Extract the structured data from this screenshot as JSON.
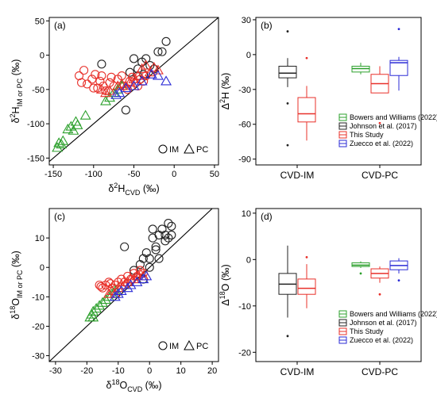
{
  "colors": {
    "bowers": "#2ca02c",
    "johnson": "#222222",
    "this_study": "#e8302a",
    "zuecco": "#2b2bd6"
  },
  "chart_data": [
    {
      "id": "a",
      "type": "scatter",
      "panel_label": "(a)",
      "xlim": [
        -155,
        55
      ],
      "ylim": [
        -160,
        55
      ],
      "xticks": [
        -150,
        -100,
        -50,
        0,
        50
      ],
      "yticks": [
        -150,
        -100,
        -50,
        0,
        50
      ],
      "xlabel": {
        "main": "δ",
        "sup": "2",
        "main2": "H",
        "sub": "CVD",
        "tail": " (‰)"
      },
      "ylabel": {
        "main": "δ",
        "sup": "2",
        "main2": "H",
        "sub": "IM or PC",
        "tail": " (‰)"
      },
      "one_to_one_line": true,
      "legend": {
        "items": [
          "IM",
          "PC"
        ],
        "position": "bottom-right"
      },
      "series": [
        {
          "key": "johnson",
          "marker": "circle",
          "points": [
            [
              -90,
              -13
            ],
            [
              -60,
              -80
            ],
            [
              -55,
              -25
            ],
            [
              -50,
              -5
            ],
            [
              -45,
              -20
            ],
            [
              -40,
              -10
            ],
            [
              -35,
              -5
            ],
            [
              -30,
              -15
            ],
            [
              -25,
              -20
            ],
            [
              -20,
              5
            ],
            [
              -15,
              5
            ],
            [
              -10,
              20
            ],
            [
              -45,
              -30
            ],
            [
              -38,
              -28
            ]
          ]
        },
        {
          "key": "this_study",
          "marker": "circle",
          "points": [
            [
              -118,
              -30
            ],
            [
              -112,
              -22
            ],
            [
              -108,
              -42
            ],
            [
              -102,
              -35
            ],
            [
              -98,
              -28
            ],
            [
              -95,
              -48
            ],
            [
              -92,
              -38
            ],
            [
              -90,
              -30
            ],
            [
              -85,
              -52
            ],
            [
              -80,
              -40
            ],
            [
              -75,
              -45
            ],
            [
              -70,
              -35
            ],
            [
              -65,
              -30
            ],
            [
              -62,
              -45
            ],
            [
              -58,
              -50
            ],
            [
              -55,
              -38
            ],
            [
              -52,
              -32
            ],
            [
              -48,
              -40
            ],
            [
              -45,
              -45
            ],
            [
              -42,
              -35
            ],
            [
              -38,
              -38
            ],
            [
              -35,
              -30
            ],
            [
              -115,
              -40
            ],
            [
              -100,
              -48
            ],
            [
              -88,
              -45
            ],
            [
              -78,
              -32
            ]
          ]
        },
        {
          "key": "bowers",
          "marker": "triangle",
          "points": [
            [
              -145,
              -135
            ],
            [
              -140,
              -130
            ],
            [
              -138,
              -125
            ],
            [
              -132,
              -108
            ],
            [
              -128,
              -104
            ],
            [
              -125,
              -110
            ],
            [
              -120,
              -102
            ],
            [
              -110,
              -88
            ],
            [
              -85,
              -67
            ],
            [
              -80,
              -62
            ],
            [
              -75,
              -55
            ],
            [
              -70,
              -50
            ],
            [
              -65,
              -45
            ],
            [
              -143,
              -128
            ],
            [
              -122,
              -97
            ]
          ]
        },
        {
          "key": "this_study",
          "marker": "triangle",
          "points": [
            [
              -90,
              -50
            ],
            [
              -85,
              -55
            ],
            [
              -80,
              -52
            ],
            [
              -70,
              -45
            ],
            [
              -65,
              -42
            ],
            [
              -60,
              -45
            ],
            [
              -55,
              -40
            ],
            [
              -50,
              -35
            ],
            [
              -45,
              -30
            ],
            [
              -40,
              -20
            ],
            [
              -35,
              -15
            ],
            [
              -30,
              -25
            ],
            [
              -25,
              -18
            ],
            [
              -20,
              -22
            ]
          ]
        },
        {
          "key": "zuecco",
          "marker": "triangle",
          "points": [
            [
              -72,
              -58
            ],
            [
              -68,
              -55
            ],
            [
              -60,
              -48
            ],
            [
              -50,
              -45
            ],
            [
              -40,
              -38
            ],
            [
              -28,
              -28
            ],
            [
              -20,
              -30
            ],
            [
              -10,
              -38
            ]
          ]
        }
      ]
    },
    {
      "id": "b",
      "type": "box",
      "panel_label": "(b)",
      "ylim": [
        -95,
        32
      ],
      "yticks": [
        30,
        0,
        -30,
        -60,
        -90
      ],
      "ylabel": {
        "main": "Δ",
        "sup": "2",
        "main2": "H",
        "tail": " (‰)"
      },
      "categories": [
        "CVD-IM",
        "CVD-PC"
      ],
      "legend": [
        "Bowers and Williams (2022)",
        "Johnson et al. (2017)",
        "This Study",
        "Zuecco et al. (2022)"
      ],
      "boxes": [
        {
          "category": "CVD-IM",
          "key": "johnson",
          "min": -28,
          "q1": -20,
          "median": -16,
          "q3": -10,
          "max": -3,
          "outliers": [
            20,
            -42,
            -78
          ]
        },
        {
          "category": "CVD-IM",
          "key": "this_study",
          "min": -74,
          "q1": -58,
          "median": -51,
          "q3": -37,
          "max": -27,
          "outliers": [
            -3
          ]
        },
        {
          "category": "CVD-PC",
          "key": "bowers",
          "min": -17,
          "q1": -15,
          "median": -12,
          "q3": -10,
          "max": -7,
          "outliers": []
        },
        {
          "category": "CVD-PC",
          "key": "this_study",
          "min": -33,
          "q1": -33,
          "median": -25,
          "q3": -17,
          "max": -10,
          "outliers": [
            -59
          ]
        },
        {
          "category": "CVD-PC",
          "key": "zuecco",
          "min": -31,
          "q1": -18,
          "median": -7,
          "q3": -5,
          "max": -2,
          "outliers": [
            22
          ]
        }
      ]
    },
    {
      "id": "c",
      "type": "scatter",
      "panel_label": "(c)",
      "xlim": [
        -32,
        22
      ],
      "ylim": [
        -32,
        20
      ],
      "xticks": [
        -30,
        -20,
        -10,
        0,
        10,
        20
      ],
      "yticks": [
        -30,
        -20,
        -10,
        0,
        10
      ],
      "xlabel": {
        "main": "δ",
        "sup": "18",
        "main2": "O",
        "sub": "CVD",
        "tail": " (‰)"
      },
      "ylabel": {
        "main": "δ",
        "sup": "18",
        "main2": "O",
        "sub": "IM or PC",
        "tail": " (‰)"
      },
      "one_to_one_line": true,
      "legend": {
        "items": [
          "IM",
          "PC"
        ],
        "position": "bottom-right"
      },
      "series": [
        {
          "key": "johnson",
          "marker": "circle",
          "points": [
            [
              -8,
              7
            ],
            [
              -5,
              -1
            ],
            [
              -2,
              3
            ],
            [
              -2,
              -4
            ],
            [
              -1,
              5
            ],
            [
              0,
              0
            ],
            [
              0,
              3
            ],
            [
              1,
              10
            ],
            [
              1,
              13
            ],
            [
              2,
              7
            ],
            [
              2,
              6
            ],
            [
              3,
              11
            ],
            [
              3,
              3
            ],
            [
              4,
              13
            ],
            [
              5,
              11
            ],
            [
              5,
              9
            ],
            [
              6,
              15
            ],
            [
              6,
              10
            ],
            [
              7,
              14
            ],
            [
              7,
              11
            ],
            [
              -3,
              1
            ]
          ]
        },
        {
          "key": "this_study",
          "marker": "circle",
          "points": [
            [
              -16,
              -6
            ],
            [
              -15,
              -7
            ],
            [
              -14,
              -6
            ],
            [
              -13,
              -5
            ],
            [
              -12,
              -7
            ],
            [
              -11,
              -6
            ],
            [
              -10,
              -5
            ],
            [
              -9,
              -4
            ],
            [
              -8,
              -5
            ],
            [
              -7,
              -3
            ],
            [
              -6,
              -4
            ],
            [
              -5,
              -2
            ],
            [
              -4,
              -3
            ],
            [
              -3,
              -1
            ],
            [
              -2,
              -2
            ],
            [
              -15.5,
              -6.5
            ],
            [
              -12.5,
              -5.5
            ]
          ]
        },
        {
          "key": "bowers",
          "marker": "triangle",
          "points": [
            [
              -19,
              -17
            ],
            [
              -18.5,
              -16
            ],
            [
              -18,
              -15
            ],
            [
              -17,
              -14
            ],
            [
              -16,
              -13
            ],
            [
              -15,
              -12
            ],
            [
              -14,
              -11
            ],
            [
              -13,
              -10
            ],
            [
              -12,
              -9
            ],
            [
              -11,
              -8
            ],
            [
              -10,
              -7
            ],
            [
              -18,
              -17
            ]
          ]
        },
        {
          "key": "this_study",
          "marker": "triangle",
          "points": [
            [
              -13,
              -9
            ],
            [
              -12,
              -8
            ],
            [
              -11,
              -9
            ],
            [
              -10,
              -7
            ],
            [
              -9,
              -6
            ],
            [
              -8,
              -6
            ],
            [
              -7,
              -5
            ],
            [
              -6,
              -4
            ],
            [
              -5,
              -4
            ],
            [
              -4,
              -3
            ],
            [
              -3,
              -2
            ],
            [
              -2,
              -3
            ]
          ]
        },
        {
          "key": "zuecco",
          "marker": "triangle",
          "points": [
            [
              -11,
              -10
            ],
            [
              -10,
              -9
            ],
            [
              -9,
              -8
            ],
            [
              -7,
              -7
            ],
            [
              -6,
              -6
            ],
            [
              -4,
              -5
            ],
            [
              -2,
              -4
            ],
            [
              -1,
              -3
            ]
          ]
        }
      ]
    },
    {
      "id": "d",
      "type": "box",
      "panel_label": "(d)",
      "ylim": [
        -22,
        11
      ],
      "yticks": [
        10,
        0,
        -10,
        -20
      ],
      "ylabel": {
        "main": "Δ",
        "sup": "18",
        "main2": "O",
        "tail": " (‰)"
      },
      "categories": [
        "CVD-IM",
        "CVD-PC"
      ],
      "legend": [
        "Bowers and Williams (2022)",
        "Johnson et al. (2017)",
        "This Study",
        "Zuecco et al. (2022)"
      ],
      "boxes": [
        {
          "category": "CVD-IM",
          "key": "johnson",
          "min": -12.5,
          "q1": -7.5,
          "median": -5.3,
          "q3": -3.0,
          "max": 3.0,
          "outliers": [
            -16.5
          ]
        },
        {
          "category": "CVD-IM",
          "key": "this_study",
          "min": -10.5,
          "q1": -7.5,
          "median": -6.2,
          "q3": -4.2,
          "max": -1.0,
          "outliers": [
            0.5
          ]
        },
        {
          "category": "CVD-PC",
          "key": "bowers",
          "min": -1.8,
          "q1": -1.5,
          "median": -1.2,
          "q3": -0.7,
          "max": -0.4,
          "outliers": [
            -3.0
          ]
        },
        {
          "category": "CVD-PC",
          "key": "this_study",
          "min": -5.0,
          "q1": -4.0,
          "median": -3.0,
          "q3": -2.0,
          "max": -1.5,
          "outliers": [
            -7.5
          ]
        },
        {
          "category": "CVD-PC",
          "key": "zuecco",
          "min": -3.0,
          "q1": -2.2,
          "median": -1.3,
          "q3": -0.3,
          "max": 0.3,
          "outliers": [
            -4.5
          ]
        }
      ]
    }
  ]
}
